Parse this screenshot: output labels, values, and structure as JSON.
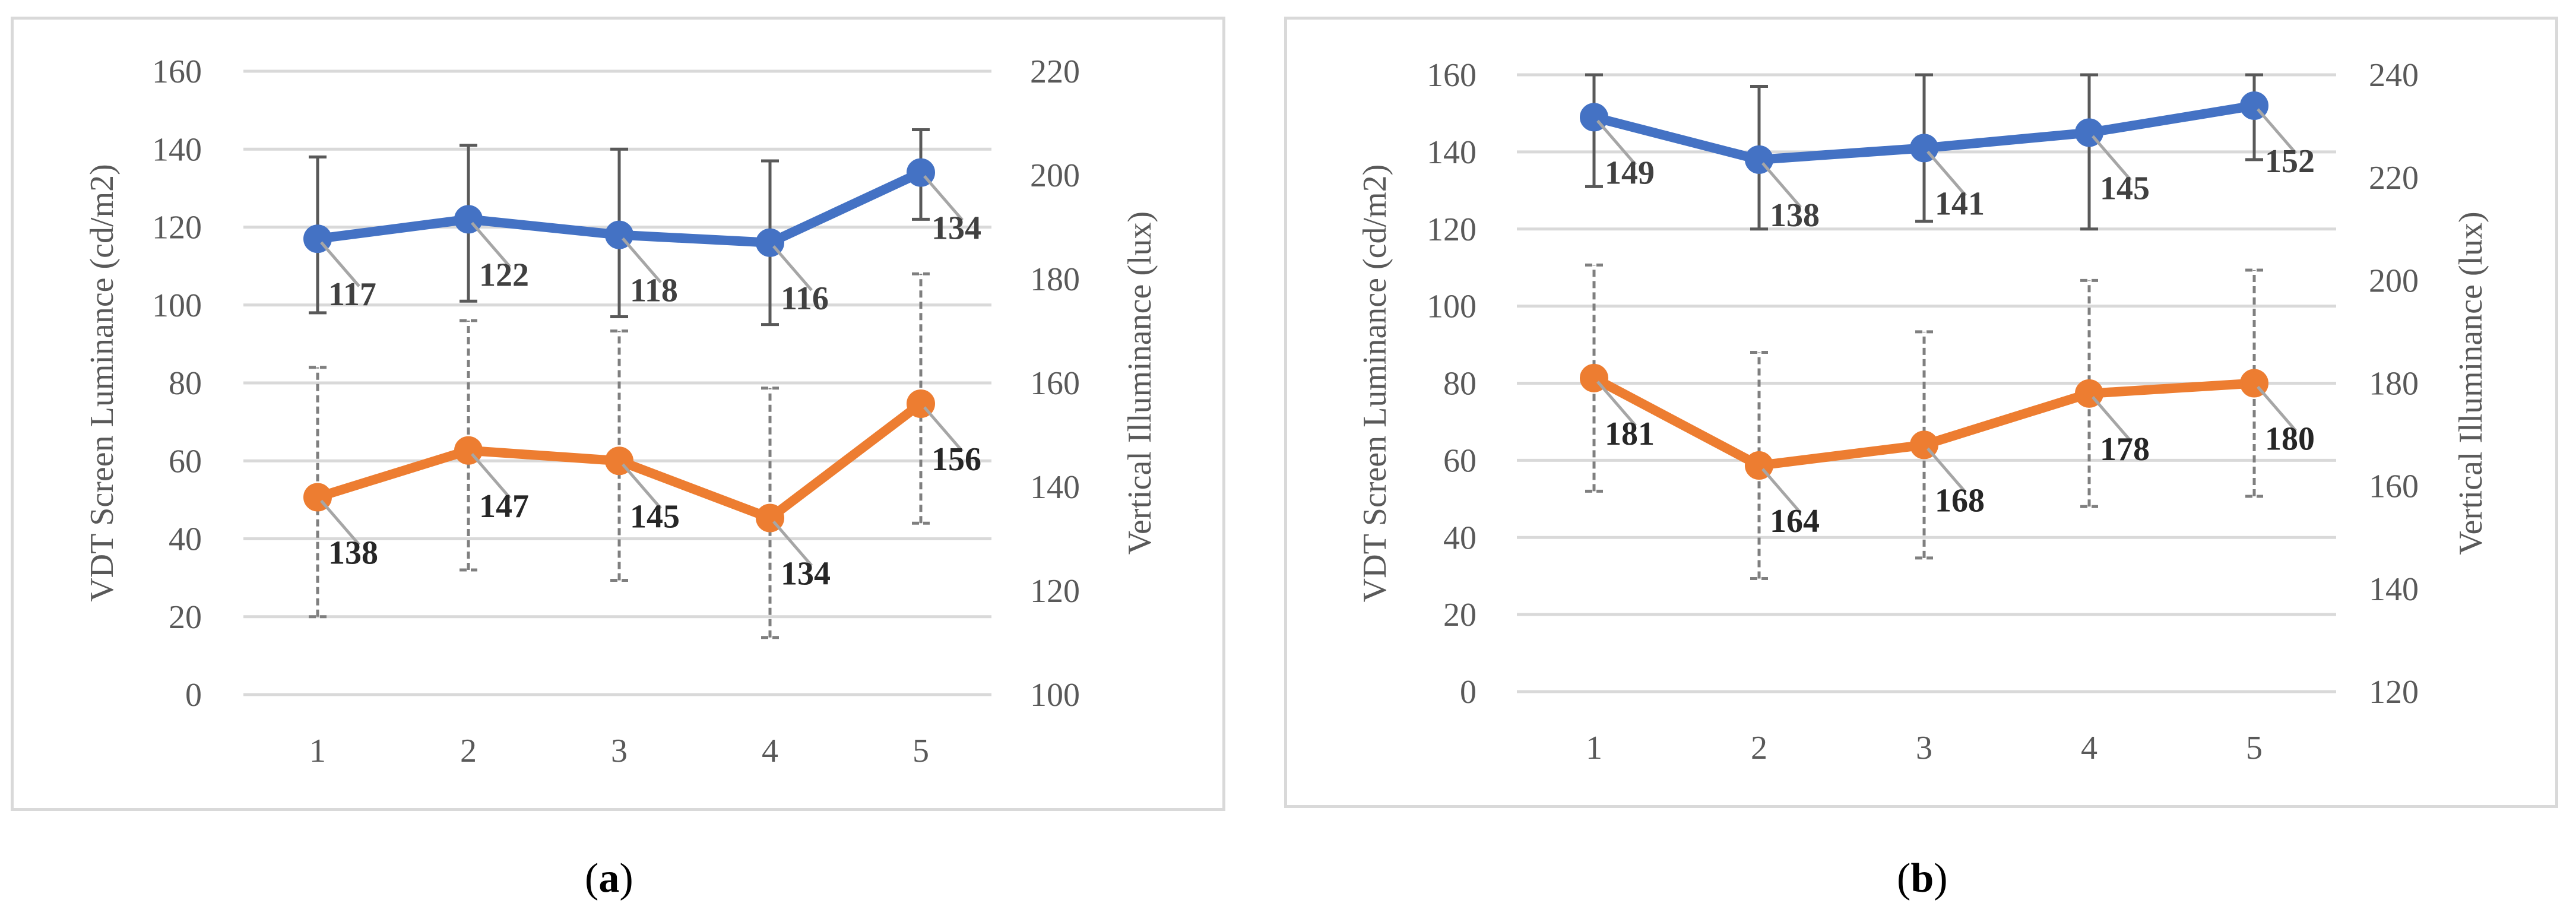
{
  "chart_data": [
    {
      "type": "line",
      "panel_label": "a",
      "ylabel_left": "VDT Screen Luminance (cd/m2)",
      "ylabel_right": "Vertical Illuminance (lux)",
      "ylim_left": [
        0,
        160
      ],
      "yticks_left": [
        "0",
        "20",
        "40",
        "60",
        "80",
        "100",
        "120",
        "140",
        "160"
      ],
      "ylim_right": [
        100,
        220
      ],
      "yticks_right": [
        "100",
        "120",
        "140",
        "160",
        "180",
        "200",
        "220"
      ],
      "categories": [
        "1",
        "2",
        "3",
        "4",
        "5"
      ],
      "series": [
        {
          "name": "VDT Screen Luminance",
          "axis": "left",
          "color": "#4472c4",
          "values": [
            117,
            122,
            118,
            116,
            134
          ],
          "labels": [
            "117",
            "122",
            "118",
            "116",
            "134"
          ],
          "error_low": [
            98,
            101,
            97,
            95,
            122
          ],
          "error_high": [
            138,
            141,
            140,
            137,
            145
          ],
          "error_style": "solid"
        },
        {
          "name": "Vertical Illuminance",
          "axis": "right",
          "color": "#ed7d31",
          "values": [
            138,
            147,
            145,
            134,
            156
          ],
          "labels": [
            "138",
            "147",
            "145",
            "134",
            "156"
          ],
          "error_low": [
            115,
            124,
            122,
            111,
            133
          ],
          "error_high": [
            163,
            172,
            170,
            159,
            181
          ],
          "error_style": "dashed"
        }
      ]
    },
    {
      "type": "line",
      "panel_label": "b",
      "ylabel_left": "VDT Screen Luminance (cd/m2)",
      "ylabel_right": "Vertical Illuminance (lux)",
      "ylim_left": [
        0,
        160
      ],
      "yticks_left": [
        "0",
        "20",
        "40",
        "60",
        "80",
        "100",
        "120",
        "140",
        "160"
      ],
      "ylim_right": [
        120,
        240
      ],
      "yticks_right": [
        "120",
        "140",
        "160",
        "180",
        "200",
        "220",
        "240"
      ],
      "categories": [
        "1",
        "2",
        "3",
        "4",
        "5"
      ],
      "series": [
        {
          "name": "VDT Screen Luminance",
          "axis": "left",
          "color": "#4472c4",
          "values": [
            149,
            138,
            141,
            145,
            152
          ],
          "labels": [
            "149",
            "138",
            "141",
            "145",
            "152"
          ],
          "error_low": [
            131,
            120,
            122,
            120,
            138
          ],
          "error_high": [
            160,
            157,
            160,
            160,
            160
          ],
          "error_style": "solid"
        },
        {
          "name": "Vertical Illuminance",
          "axis": "right",
          "color": "#ed7d31",
          "values": [
            181,
            164,
            168,
            178,
            180
          ],
          "labels": [
            "181",
            "164",
            "168",
            "178",
            "180"
          ],
          "error_low": [
            159,
            142,
            146,
            156,
            158
          ],
          "error_high": [
            203,
            186,
            190,
            200,
            202
          ],
          "error_style": "dashed"
        }
      ]
    }
  ],
  "panel_labels": {
    "a": "a",
    "b": "b"
  }
}
